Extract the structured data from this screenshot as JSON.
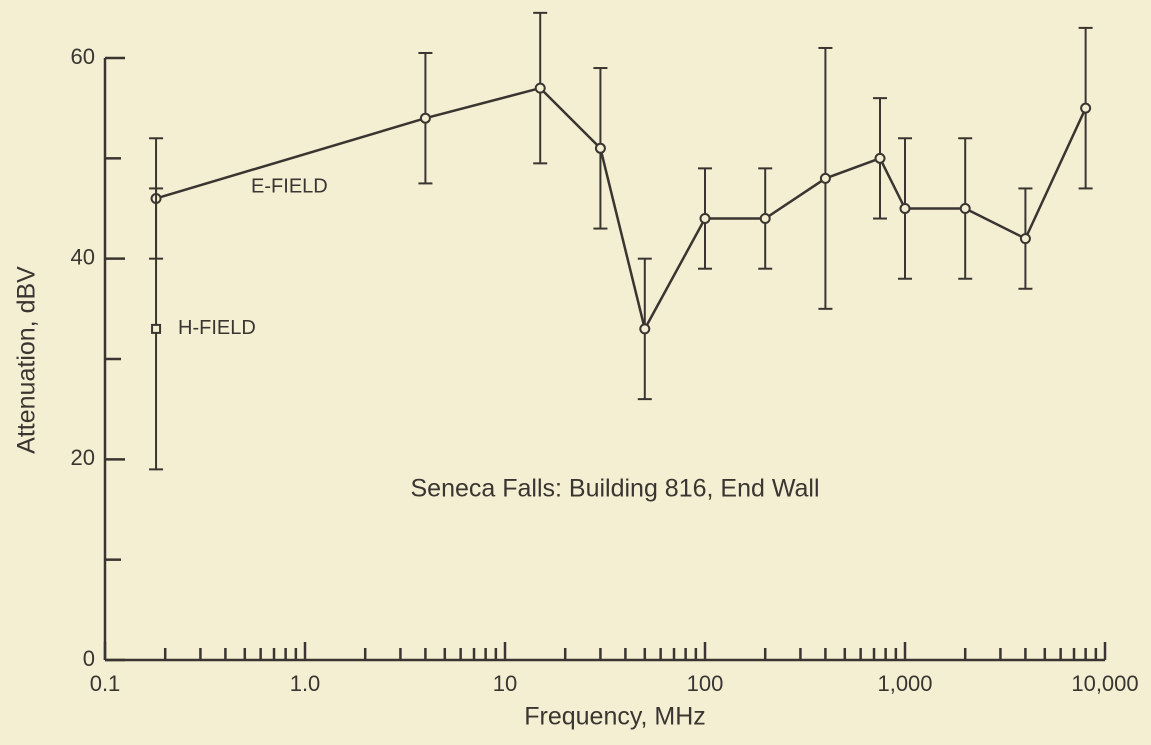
{
  "chart_data": {
    "type": "line",
    "xlabel": "Frequency, MHz",
    "ylabel": "Attenuation, dBV",
    "annotation": "Seneca Falls:  Building 816, End Wall",
    "xscale": "log",
    "xlim": [
      0.1,
      10000
    ],
    "xticks": [
      0.1,
      {
        "value": 1,
        "label": "1.0"
      },
      10,
      100,
      {
        "value": 1000,
        "label": "1,000"
      },
      {
        "value": 10000,
        "label": "10,000"
      }
    ],
    "xminor_ticks": [
      0.2,
      0.3,
      0.4,
      0.5,
      0.6,
      0.7,
      0.8,
      0.9,
      2,
      3,
      4,
      5,
      6,
      7,
      8,
      9,
      20,
      30,
      40,
      50,
      60,
      70,
      80,
      90,
      200,
      300,
      400,
      500,
      600,
      700,
      800,
      900,
      2000,
      3000,
      4000,
      5000,
      6000,
      7000,
      8000,
      9000
    ],
    "ylim": [
      0,
      60
    ],
    "yticks": [
      0,
      20,
      40,
      60
    ],
    "yminor_ticks": [
      10,
      30,
      50
    ],
    "series": [
      {
        "name": "E-FIELD",
        "color": "#3a3530",
        "marker": "circle",
        "x": [
          0.18,
          4,
          15,
          30,
          50,
          100,
          200,
          400,
          750,
          1000,
          2000,
          4000,
          8000
        ],
        "values": [
          46,
          54,
          57,
          51,
          33,
          44,
          44,
          48,
          50,
          45,
          45,
          42,
          55
        ],
        "errors": [
          6,
          6.5,
          7.5,
          8,
          7,
          5,
          5,
          13,
          6,
          7,
          7,
          5,
          8
        ]
      },
      {
        "name": "H-FIELD",
        "color": "#3a3530",
        "marker": "square",
        "x": [
          0.18
        ],
        "values": [
          33
        ],
        "errors": [
          14
        ]
      }
    ]
  }
}
